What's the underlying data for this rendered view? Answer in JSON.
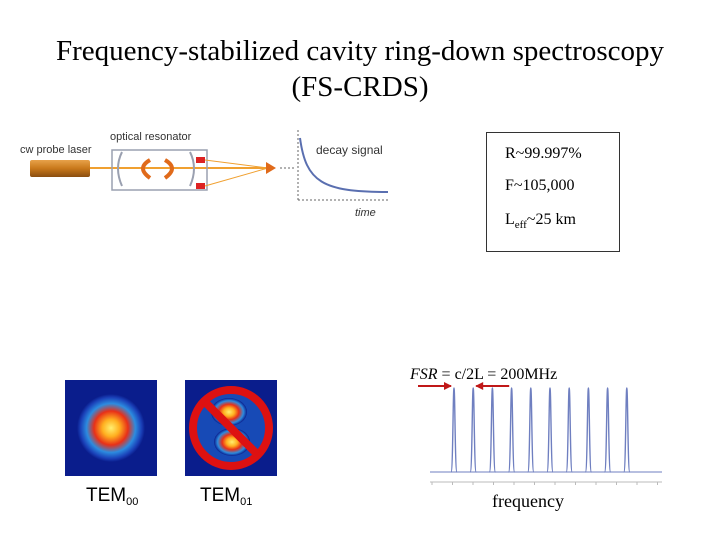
{
  "title": {
    "line1": "Frequency-stabilized cavity ring-down spectroscopy",
    "line2": "(FS-CRDS)"
  },
  "schematic": {
    "laser_label": "cw probe laser",
    "resonator_label": "optical resonator",
    "decay_label": "decay signal",
    "time_label": "time"
  },
  "params": {
    "reflectivity": "R~99.997%",
    "finesse": "F~105,000",
    "length_prefix": "L",
    "length_sub": "eff",
    "length_suffix": "~25 km"
  },
  "modes": {
    "tem00_prefix": "TEM",
    "tem00_sub": "00",
    "tem01_prefix": "TEM",
    "tem01_sub": "01"
  },
  "spectrum": {
    "fsr_italic": "FSR",
    "fsr_rest": " = c/2L = 200MHz",
    "xlabel": "frequency",
    "peak_count": 10
  },
  "colors": {
    "laser": "#c8781a",
    "beam": "#f0a030",
    "arrow": "#e06a1a",
    "mirror": "#dd2222",
    "decay": "#5a6fb0",
    "spectrum": "#6f7fc0",
    "fsr_arrow": "#c01818",
    "mode_bg": "#0a1d8c",
    "forbidden": "#dd1111"
  }
}
